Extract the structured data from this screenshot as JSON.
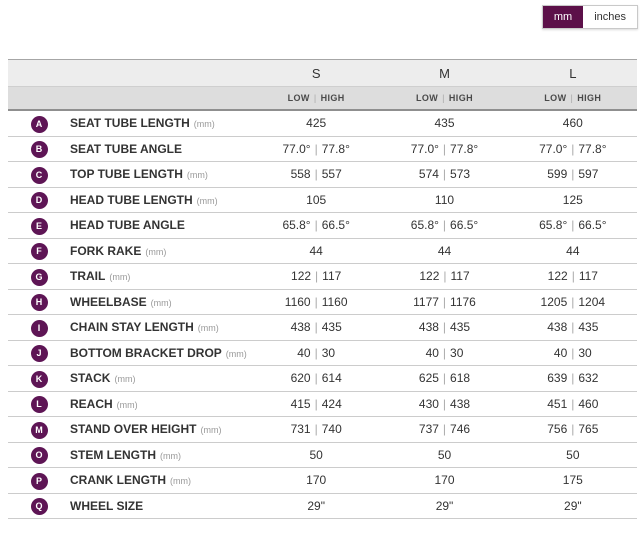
{
  "colors": {
    "accent_purple": "#5c1049",
    "badge_purple": "#5e1555",
    "header_bg": "#ededed",
    "subheader_bg": "#dddddd"
  },
  "unit_toggle": {
    "mm_label": "mm",
    "inches_label": "inches",
    "selected": "mm"
  },
  "table": {
    "size_headers": [
      "S",
      "M",
      "L"
    ],
    "low_label": "LOW",
    "high_label": "HIGH",
    "value_separator": "|",
    "rows": [
      {
        "badge": "A",
        "label": "SEAT TUBE LENGTH",
        "unit": "(mm)",
        "values": [
          [
            "425"
          ],
          [
            "435"
          ],
          [
            "460"
          ]
        ]
      },
      {
        "badge": "B",
        "label": "SEAT TUBE ANGLE",
        "unit": "",
        "values": [
          [
            "77.0°",
            "77.8°"
          ],
          [
            "77.0°",
            "77.8°"
          ],
          [
            "77.0°",
            "77.8°"
          ]
        ]
      },
      {
        "badge": "C",
        "label": "TOP TUBE LENGTH",
        "unit": "(mm)",
        "values": [
          [
            "558",
            "557"
          ],
          [
            "574",
            "573"
          ],
          [
            "599",
            "597"
          ]
        ]
      },
      {
        "badge": "D",
        "label": "HEAD TUBE LENGTH",
        "unit": "(mm)",
        "values": [
          [
            "105"
          ],
          [
            "110"
          ],
          [
            "125"
          ]
        ]
      },
      {
        "badge": "E",
        "label": "HEAD TUBE ANGLE",
        "unit": "",
        "values": [
          [
            "65.8°",
            "66.5°"
          ],
          [
            "65.8°",
            "66.5°"
          ],
          [
            "65.8°",
            "66.5°"
          ]
        ]
      },
      {
        "badge": "F",
        "label": "FORK RAKE",
        "unit": "(mm)",
        "values": [
          [
            "44"
          ],
          [
            "44"
          ],
          [
            "44"
          ]
        ]
      },
      {
        "badge": "G",
        "label": "TRAIL",
        "unit": "(mm)",
        "values": [
          [
            "122",
            "117"
          ],
          [
            "122",
            "117"
          ],
          [
            "122",
            "117"
          ]
        ]
      },
      {
        "badge": "H",
        "label": "WHEELBASE",
        "unit": "(mm)",
        "values": [
          [
            "1160",
            "1160"
          ],
          [
            "1177",
            "1176"
          ],
          [
            "1205",
            "1204"
          ]
        ]
      },
      {
        "badge": "I",
        "label": "CHAIN STAY LENGTH",
        "unit": "(mm)",
        "values": [
          [
            "438",
            "435"
          ],
          [
            "438",
            "435"
          ],
          [
            "438",
            "435"
          ]
        ]
      },
      {
        "badge": "J",
        "label": "BOTTOM BRACKET DROP",
        "unit": "(mm)",
        "values": [
          [
            "40",
            "30"
          ],
          [
            "40",
            "30"
          ],
          [
            "40",
            "30"
          ]
        ]
      },
      {
        "badge": "K",
        "label": "STACK",
        "unit": "(mm)",
        "values": [
          [
            "620",
            "614"
          ],
          [
            "625",
            "618"
          ],
          [
            "639",
            "632"
          ]
        ]
      },
      {
        "badge": "L",
        "label": "REACH",
        "unit": "(mm)",
        "values": [
          [
            "415",
            "424"
          ],
          [
            "430",
            "438"
          ],
          [
            "451",
            "460"
          ]
        ]
      },
      {
        "badge": "M",
        "label": "STAND OVER HEIGHT",
        "unit": "(mm)",
        "values": [
          [
            "731",
            "740"
          ],
          [
            "737",
            "746"
          ],
          [
            "756",
            "765"
          ]
        ]
      },
      {
        "badge": "O",
        "label": "STEM LENGTH",
        "unit": "(mm)",
        "values": [
          [
            "50"
          ],
          [
            "50"
          ],
          [
            "50"
          ]
        ]
      },
      {
        "badge": "P",
        "label": "CRANK LENGTH",
        "unit": "(mm)",
        "values": [
          [
            "170"
          ],
          [
            "170"
          ],
          [
            "175"
          ]
        ]
      },
      {
        "badge": "Q",
        "label": "WHEEL SIZE",
        "unit": "",
        "values": [
          [
            "29\""
          ],
          [
            "29\""
          ],
          [
            "29\""
          ]
        ]
      }
    ]
  }
}
